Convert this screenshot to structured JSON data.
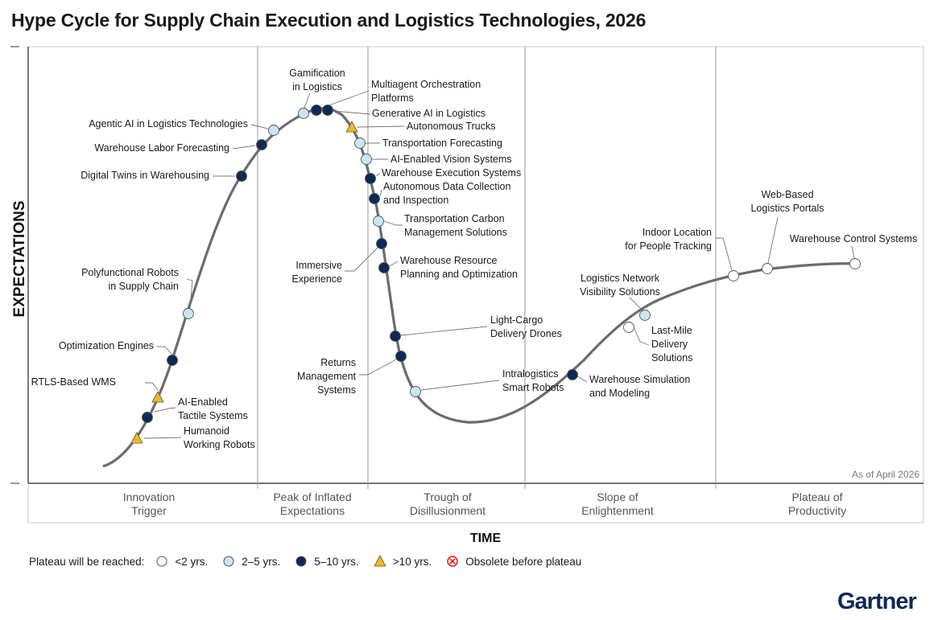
{
  "title": "Hype Cycle for Supply Chain Execution and Logistics Technologies, 2026",
  "brand": "Gartner",
  "colors": {
    "lt2": "#ffffff",
    "y2to5": "#c8e6f3",
    "y5to10": "#0c2a57",
    "gt10": "#f2b81e",
    "obsolete": "#e02020",
    "curve": "#6b6d6d"
  },
  "chart_data": {
    "type": "scatter",
    "as_of": "As of April 2026",
    "xlabel": "TIME",
    "ylabel": "EXPECTATIONS",
    "phases": [
      {
        "key": "trigger",
        "lines": [
          "Innovation",
          "Trigger"
        ]
      },
      {
        "key": "peak",
        "lines": [
          "Peak of Inflated",
          "Expectations"
        ]
      },
      {
        "key": "trough",
        "lines": [
          "Trough of",
          "Disillusionment"
        ]
      },
      {
        "key": "slope",
        "lines": [
          "Slope of",
          "Enlightenment"
        ]
      },
      {
        "key": "plateau",
        "lines": [
          "Plateau of",
          "Productivity"
        ]
      }
    ],
    "legend": {
      "title": "Plateau will be reached:",
      "items": [
        {
          "key": "lt2",
          "label": "<2 yrs.",
          "symbol": "circle"
        },
        {
          "key": "y2to5",
          "label": "2–5 yrs.",
          "symbol": "circle"
        },
        {
          "key": "y5to10",
          "label": "5–10 yrs.",
          "symbol": "circle"
        },
        {
          "key": "gt10",
          "label": ">10 yrs.",
          "symbol": "triangle"
        },
        {
          "key": "obsolete",
          "label": "Obsolete before plateau",
          "symbol": "cross"
        }
      ]
    },
    "technologies": [
      {
        "name": "Humanoid Working Robots",
        "lines": [
          "Humanoid",
          "Working Robots"
        ],
        "category": "gt10"
      },
      {
        "name": "AI-Enabled Tactile Systems",
        "lines": [
          "AI-Enabled",
          "Tactile Systems"
        ],
        "category": "y5to10"
      },
      {
        "name": "RTLS-Based WMS",
        "lines": [
          "RTLS-Based WMS"
        ],
        "category": "gt10"
      },
      {
        "name": "Optimization Engines",
        "lines": [
          "Optimization Engines"
        ],
        "category": "y5to10"
      },
      {
        "name": "Polyfunctional Robots in Supply Chain",
        "lines": [
          "Polyfunctional Robots",
          "in Supply Chain"
        ],
        "category": "y2to5"
      },
      {
        "name": "Digital Twins in Warehousing",
        "lines": [
          "Digital Twins in Warehousing"
        ],
        "category": "y5to10"
      },
      {
        "name": "Warehouse Labor Forecasting",
        "lines": [
          "Warehouse Labor Forecasting"
        ],
        "category": "y5to10"
      },
      {
        "name": "Agentic AI in Logistics Technologies",
        "lines": [
          "Agentic AI in Logistics Technologies"
        ],
        "category": "y2to5"
      },
      {
        "name": "Gamification in Logistics",
        "lines": [
          "Gamification",
          "in Logistics"
        ],
        "category": "y2to5"
      },
      {
        "name": "Multiagent Orchestration Platforms",
        "lines": [
          "Multiagent Orchestration",
          "Platforms"
        ],
        "category": "y5to10"
      },
      {
        "name": "Generative AI in Logistics",
        "lines": [
          "Generative AI in Logistics"
        ],
        "category": "y5to10"
      },
      {
        "name": "Autonomous Trucks",
        "lines": [
          "Autonomous Trucks"
        ],
        "category": "gt10"
      },
      {
        "name": "Transportation Forecasting",
        "lines": [
          "Transportation Forecasting"
        ],
        "category": "y2to5"
      },
      {
        "name": "AI-Enabled Vision Systems",
        "lines": [
          "AI-Enabled Vision Systems"
        ],
        "category": "y2to5"
      },
      {
        "name": "Warehouse Execution Systems",
        "lines": [
          "Warehouse Execution Systems"
        ],
        "category": "y5to10"
      },
      {
        "name": "Autonomous Data Collection and Inspection",
        "lines": [
          "Autonomous Data Collection",
          "and Inspection"
        ],
        "category": "y5to10"
      },
      {
        "name": "Transportation Carbon Management Solutions",
        "lines": [
          "Transportation Carbon",
          "Management Solutions"
        ],
        "category": "y2to5"
      },
      {
        "name": "Immersive Experience",
        "lines": [
          "Immersive",
          "Experience"
        ],
        "category": "y5to10"
      },
      {
        "name": "Warehouse Resource Planning and Optimization",
        "lines": [
          "Warehouse Resource",
          "Planning and Optimization"
        ],
        "category": "y5to10"
      },
      {
        "name": "Light-Cargo Delivery Drones",
        "lines": [
          "Light-Cargo",
          "Delivery Drones"
        ],
        "category": "y5to10"
      },
      {
        "name": "Returns Management Systems",
        "lines": [
          "Returns",
          "Management",
          "Systems"
        ],
        "category": "y5to10"
      },
      {
        "name": "Intralogistics Smart Robots",
        "lines": [
          "Intralogistics",
          "Smart Robots"
        ],
        "category": "y2to5"
      },
      {
        "name": "Warehouse Simulation and Modeling",
        "lines": [
          "Warehouse Simulation",
          "and Modeling"
        ],
        "category": "y5to10"
      },
      {
        "name": "Last-Mile Delivery Solutions",
        "lines": [
          "Last-Mile",
          "Delivery",
          "Solutions"
        ],
        "category": "lt2"
      },
      {
        "name": "Logistics Network Visibility Solutions",
        "lines": [
          "Logistics Network",
          "Visibility Solutions"
        ],
        "category": "y2to5"
      },
      {
        "name": "Indoor Location for People Tracking",
        "lines": [
          "Indoor Location",
          "for People Tracking"
        ],
        "category": "lt2"
      },
      {
        "name": "Web-Based Logistics Portals",
        "lines": [
          "Web-Based",
          "Logistics Portals"
        ],
        "category": "lt2"
      },
      {
        "name": "Warehouse Control Systems",
        "lines": [
          "Warehouse Control Systems"
        ],
        "category": "lt2"
      }
    ]
  }
}
